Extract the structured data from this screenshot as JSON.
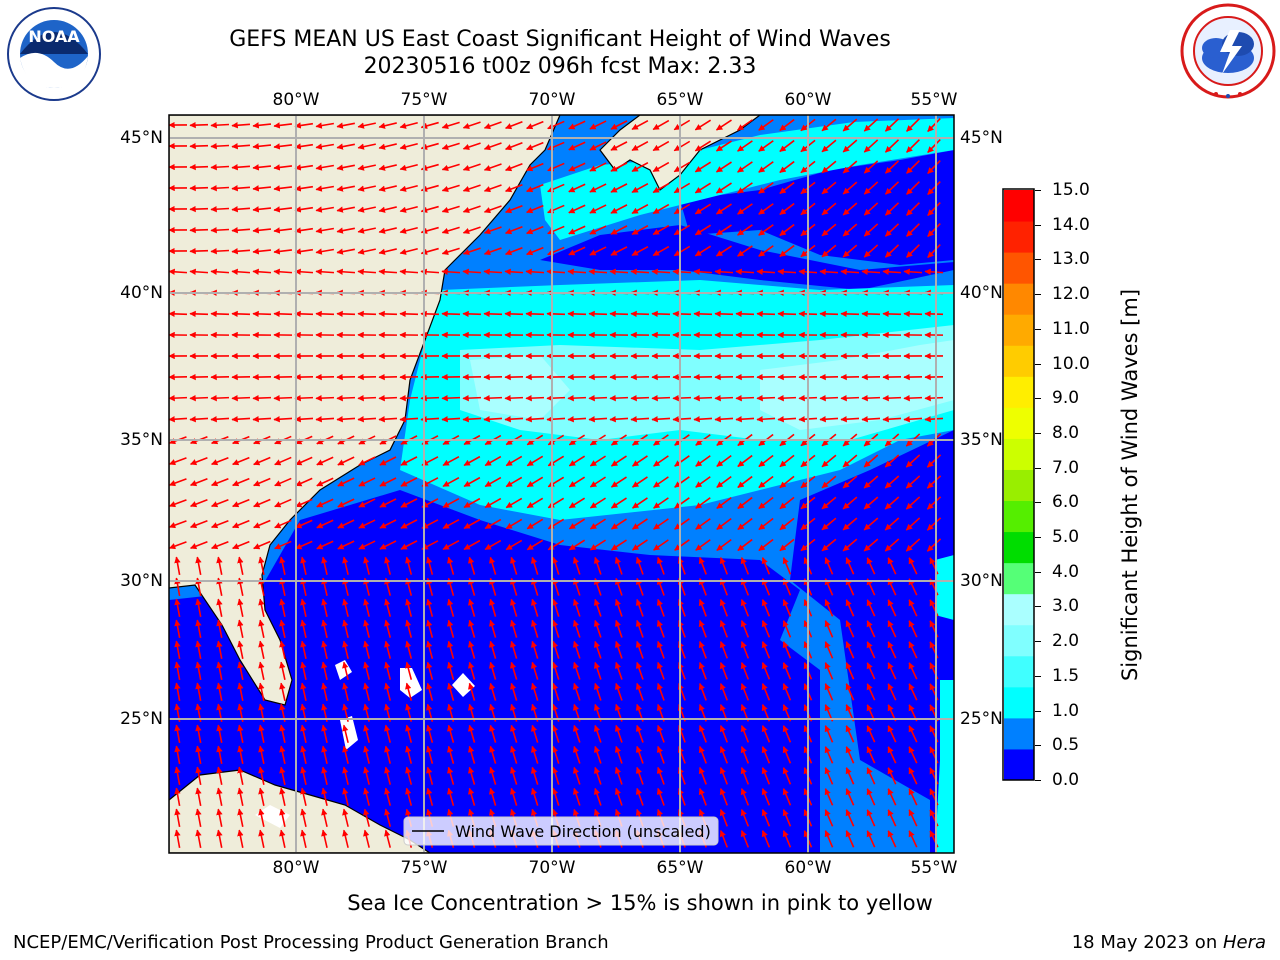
{
  "title": {
    "line1": "GEFS MEAN US East Coast Significant Height of Wind Waves",
    "line2": "20230516 t00z 096h fcst   Max: 2.33"
  },
  "logos": {
    "left": {
      "icon": "noaa-logo",
      "text": "NOAA"
    },
    "right": {
      "icon": "national-weather-service-logo"
    }
  },
  "map": {
    "lon_labels": [
      "80°W",
      "75°W",
      "70°W",
      "65°W",
      "60°W",
      "55°W"
    ],
    "lat_labels": [
      "45°N",
      "40°N",
      "35°N",
      "30°N",
      "25°N"
    ],
    "legend": "Wind Wave Direction (unscaled)",
    "colors": {
      "land": "#efedda",
      "blue": "#0000ff",
      "mid_blue": "#0080ff",
      "cyan": "#00ffff",
      "light_cyan": "#80ffff",
      "pale_cyan": "#aaffff",
      "arrow": "#ff0000",
      "grid": "#b0b0b0"
    }
  },
  "colorbar": {
    "label": "Significant Height of Wind Waves [m]",
    "ticks": [
      "0.0",
      "0.5",
      "1.0",
      "1.5",
      "2.0",
      "3.0",
      "4.0",
      "5.0",
      "6.0",
      "7.0",
      "8.0",
      "9.0",
      "10.0",
      "11.0",
      "12.0",
      "13.0",
      "14.0",
      "15.0"
    ],
    "colors": [
      "#0000ff",
      "#0080ff",
      "#00ffff",
      "#40ffff",
      "#80ffff",
      "#aaffff",
      "#55ff77",
      "#00dd00",
      "#55ee00",
      "#99ee00",
      "#ccff00",
      "#eeff00",
      "#ffee00",
      "#ffcc00",
      "#ffaa00",
      "#ff8800",
      "#ff5500",
      "#ff2200",
      "#ff0000"
    ]
  },
  "note": "Sea Ice Concentration > 15% is shown in pink to yellow",
  "footer": {
    "left": "NCEP/EMC/Verification Post Processing Product Generation Branch",
    "right_prefix": "18 May 2023 on ",
    "right_italic": "Hera"
  }
}
